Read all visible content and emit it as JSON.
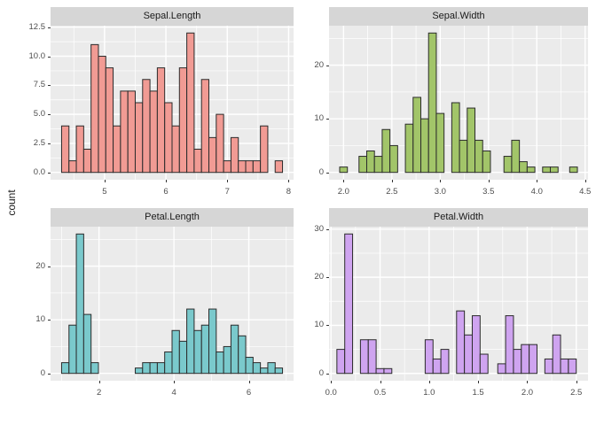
{
  "figure": {
    "ylabel": "count",
    "background": "#FFFFFF",
    "style": {
      "panel_bg": "#EBEBEB",
      "strip_bg": "#D6D6D6",
      "grid_major_color": "#FFFFFF",
      "grid_minor_color": "#FFFFFF",
      "bar_border": "#2B2B2B",
      "axis_text_color": "#4D4D4D",
      "tick_mark_color": "#333333",
      "strip_text_color": "#1A1A1A"
    }
  },
  "chart_data": [
    {
      "id": "sepal-length",
      "type": "histogram",
      "title": "Sepal.Length",
      "fill": "#F19B94",
      "row": 0,
      "col": 0,
      "x_range": [
        4.12,
        8.08
      ],
      "y_range": [
        -0.63,
        12.63
      ],
      "bin_width": 0.12,
      "x_ticks": [
        {
          "v": 5,
          "label": "5"
        },
        {
          "v": 6,
          "label": "6"
        },
        {
          "v": 7,
          "label": "7"
        },
        {
          "v": 8,
          "label": "8"
        }
      ],
      "y_ticks": [
        {
          "v": 0,
          "label": "0.0"
        },
        {
          "v": 2.5,
          "label": "2.5"
        },
        {
          "v": 5,
          "label": "5.0"
        },
        {
          "v": 7.5,
          "label": "7.5"
        },
        {
          "v": 10,
          "label": "10.0"
        },
        {
          "v": 12.5,
          "label": "12.5"
        }
      ],
      "x_minor": [
        4.5,
        5.5,
        6.5,
        7.5
      ],
      "y_minor": [
        1.25,
        3.75,
        6.25,
        8.75,
        11.25
      ],
      "bars": [
        {
          "x": 4.3,
          "count": 4
        },
        {
          "x": 4.42,
          "count": 1
        },
        {
          "x": 4.54,
          "count": 4
        },
        {
          "x": 4.66,
          "count": 2
        },
        {
          "x": 4.78,
          "count": 11
        },
        {
          "x": 4.9,
          "count": 10
        },
        {
          "x": 5.02,
          "count": 9
        },
        {
          "x": 5.14,
          "count": 4
        },
        {
          "x": 5.26,
          "count": 7
        },
        {
          "x": 5.38,
          "count": 7
        },
        {
          "x": 5.5,
          "count": 6
        },
        {
          "x": 5.62,
          "count": 8
        },
        {
          "x": 5.74,
          "count": 7
        },
        {
          "x": 5.86,
          "count": 9
        },
        {
          "x": 5.98,
          "count": 6
        },
        {
          "x": 6.1,
          "count": 4
        },
        {
          "x": 6.22,
          "count": 9
        },
        {
          "x": 6.34,
          "count": 12
        },
        {
          "x": 6.46,
          "count": 2
        },
        {
          "x": 6.58,
          "count": 8
        },
        {
          "x": 6.7,
          "count": 3
        },
        {
          "x": 6.82,
          "count": 5
        },
        {
          "x": 6.94,
          "count": 1
        },
        {
          "x": 7.06,
          "count": 3
        },
        {
          "x": 7.18,
          "count": 1
        },
        {
          "x": 7.3,
          "count": 1
        },
        {
          "x": 7.42,
          "count": 1
        },
        {
          "x": 7.54,
          "count": 4
        },
        {
          "x": 7.78,
          "count": 1
        }
      ]
    },
    {
      "id": "sepal-width",
      "type": "histogram",
      "title": "Sepal.Width",
      "fill": "#A2C569",
      "row": 0,
      "col": 1,
      "x_range": [
        1.85,
        4.53
      ],
      "y_range": [
        -1.37,
        27.37
      ],
      "bin_width": 0.08,
      "x_ticks": [
        {
          "v": 2.0,
          "label": "2.0"
        },
        {
          "v": 2.5,
          "label": "2.5"
        },
        {
          "v": 3.0,
          "label": "3.0"
        },
        {
          "v": 3.5,
          "label": "3.5"
        },
        {
          "v": 4.0,
          "label": "4.0"
        },
        {
          "v": 4.5,
          "label": "4.5"
        }
      ],
      "y_ticks": [
        {
          "v": 0,
          "label": "0"
        },
        {
          "v": 10,
          "label": "10"
        },
        {
          "v": 20,
          "label": "20"
        }
      ],
      "x_minor": [
        2.25,
        2.75,
        3.25,
        3.75,
        4.25
      ],
      "y_minor": [
        5,
        15,
        25
      ],
      "bars": [
        {
          "x": 1.96,
          "count": 1
        },
        {
          "x": 2.16,
          "count": 3
        },
        {
          "x": 2.24,
          "count": 4
        },
        {
          "x": 2.32,
          "count": 3
        },
        {
          "x": 2.4,
          "count": 8
        },
        {
          "x": 2.48,
          "count": 5
        },
        {
          "x": 2.64,
          "count": 9
        },
        {
          "x": 2.72,
          "count": 14
        },
        {
          "x": 2.8,
          "count": 10
        },
        {
          "x": 2.88,
          "count": 26
        },
        {
          "x": 2.96,
          "count": 11
        },
        {
          "x": 3.12,
          "count": 13
        },
        {
          "x": 3.2,
          "count": 6
        },
        {
          "x": 3.28,
          "count": 12
        },
        {
          "x": 3.36,
          "count": 6
        },
        {
          "x": 3.44,
          "count": 4
        },
        {
          "x": 3.66,
          "count": 3
        },
        {
          "x": 3.74,
          "count": 6
        },
        {
          "x": 3.82,
          "count": 2
        },
        {
          "x": 3.9,
          "count": 1
        },
        {
          "x": 4.06,
          "count": 1
        },
        {
          "x": 4.14,
          "count": 1
        },
        {
          "x": 4.34,
          "count": 1
        }
      ]
    },
    {
      "id": "petal-length",
      "type": "histogram",
      "title": "Petal.Length",
      "fill": "#7AC9CC",
      "row": 1,
      "col": 0,
      "x_range": [
        0.705,
        7.195
      ],
      "y_range": [
        -1.37,
        27.37
      ],
      "bin_width": 0.197,
      "x_ticks": [
        {
          "v": 2,
          "label": "2"
        },
        {
          "v": 4,
          "label": "4"
        },
        {
          "v": 6,
          "label": "6"
        }
      ],
      "y_ticks": [
        {
          "v": 0,
          "label": "0"
        },
        {
          "v": 10,
          "label": "10"
        },
        {
          "v": 20,
          "label": "20"
        }
      ],
      "x_minor": [
        1,
        3,
        5,
        7
      ],
      "y_minor": [
        5,
        15,
        25
      ],
      "bars": [
        {
          "x": 1.0,
          "count": 2
        },
        {
          "x": 1.197,
          "count": 9
        },
        {
          "x": 1.393,
          "count": 26
        },
        {
          "x": 1.59,
          "count": 11
        },
        {
          "x": 1.787,
          "count": 2
        },
        {
          "x": 2.967,
          "count": 1
        },
        {
          "x": 3.163,
          "count": 2
        },
        {
          "x": 3.36,
          "count": 2
        },
        {
          "x": 3.557,
          "count": 2
        },
        {
          "x": 3.753,
          "count": 4
        },
        {
          "x": 3.95,
          "count": 8
        },
        {
          "x": 4.147,
          "count": 6
        },
        {
          "x": 4.343,
          "count": 12
        },
        {
          "x": 4.54,
          "count": 8
        },
        {
          "x": 4.737,
          "count": 9
        },
        {
          "x": 4.933,
          "count": 12
        },
        {
          "x": 5.13,
          "count": 4
        },
        {
          "x": 5.327,
          "count": 5
        },
        {
          "x": 5.523,
          "count": 9
        },
        {
          "x": 5.72,
          "count": 7
        },
        {
          "x": 5.917,
          "count": 3
        },
        {
          "x": 6.113,
          "count": 2
        },
        {
          "x": 6.31,
          "count": 1
        },
        {
          "x": 6.507,
          "count": 2
        },
        {
          "x": 6.703,
          "count": 1
        }
      ]
    },
    {
      "id": "petal-width",
      "type": "histogram",
      "title": "Petal.Width",
      "fill": "#CFA4F0",
      "row": 1,
      "col": 1,
      "x_range": [
        -0.02,
        2.62
      ],
      "y_range": [
        -1.52,
        30.52
      ],
      "bin_width": 0.08,
      "x_ticks": [
        {
          "v": 0.0,
          "label": "0.0"
        },
        {
          "v": 0.5,
          "label": "0.5"
        },
        {
          "v": 1.0,
          "label": "1.0"
        },
        {
          "v": 1.5,
          "label": "1.5"
        },
        {
          "v": 2.0,
          "label": "2.0"
        },
        {
          "v": 2.5,
          "label": "2.5"
        }
      ],
      "y_ticks": [
        {
          "v": 0,
          "label": "0"
        },
        {
          "v": 10,
          "label": "10"
        },
        {
          "v": 20,
          "label": "20"
        },
        {
          "v": 30,
          "label": "30"
        }
      ],
      "x_minor": [
        0.25,
        0.75,
        1.25,
        1.75,
        2.25
      ],
      "y_minor": [
        5,
        15,
        25
      ],
      "bars": [
        {
          "x": 0.06,
          "count": 5
        },
        {
          "x": 0.14,
          "count": 29
        },
        {
          "x": 0.3,
          "count": 7
        },
        {
          "x": 0.38,
          "count": 7
        },
        {
          "x": 0.46,
          "count": 1
        },
        {
          "x": 0.54,
          "count": 1
        },
        {
          "x": 0.96,
          "count": 7
        },
        {
          "x": 1.04,
          "count": 3
        },
        {
          "x": 1.12,
          "count": 5
        },
        {
          "x": 1.28,
          "count": 13
        },
        {
          "x": 1.36,
          "count": 8
        },
        {
          "x": 1.44,
          "count": 12
        },
        {
          "x": 1.52,
          "count": 4
        },
        {
          "x": 1.7,
          "count": 2
        },
        {
          "x": 1.78,
          "count": 12
        },
        {
          "x": 1.86,
          "count": 5
        },
        {
          "x": 1.94,
          "count": 6
        },
        {
          "x": 2.02,
          "count": 6
        },
        {
          "x": 2.18,
          "count": 3
        },
        {
          "x": 2.26,
          "count": 8
        },
        {
          "x": 2.34,
          "count": 3
        },
        {
          "x": 2.42,
          "count": 3
        }
      ]
    }
  ]
}
